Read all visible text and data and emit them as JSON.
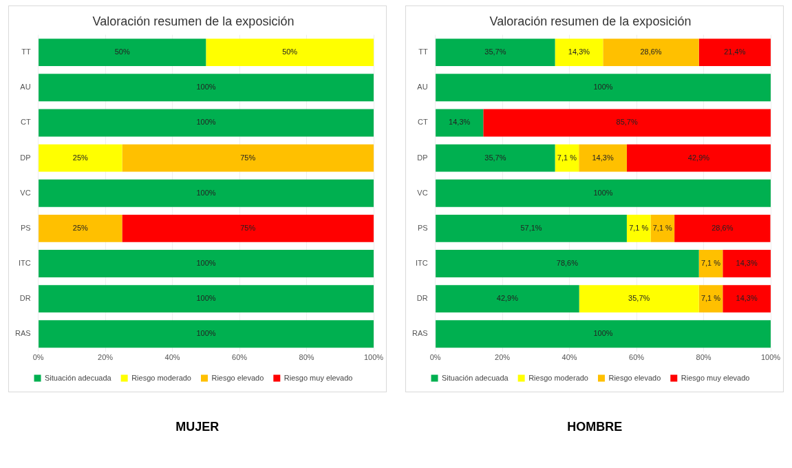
{
  "chart_data": [
    {
      "type": "bar",
      "orientation": "horizontal",
      "stacked": true,
      "title": "Valoración resumen de la exposición",
      "categories": [
        "TT",
        "AU",
        "CT",
        "DP",
        "VC",
        "PS",
        "ITC",
        "DR",
        "RAS"
      ],
      "series": [
        {
          "name": "Situación adecuada",
          "color": "#00b050",
          "values": [
            50,
            100,
            100,
            null,
            100,
            null,
            100,
            100,
            100
          ],
          "value_labels": [
            "50%",
            "100%",
            "100%",
            null,
            "100%",
            null,
            "100%",
            "100%",
            "100%"
          ]
        },
        {
          "name": "Riesgo moderado",
          "color": "#ffff00",
          "values": [
            50,
            null,
            null,
            25,
            null,
            null,
            null,
            null,
            null
          ],
          "value_labels": [
            "50%",
            null,
            null,
            "25%",
            null,
            null,
            null,
            null,
            null
          ]
        },
        {
          "name": "Riesgo elevado",
          "color": "#ffc000",
          "values": [
            null,
            null,
            null,
            75,
            null,
            25,
            null,
            null,
            null
          ],
          "value_labels": [
            null,
            null,
            null,
            "75%",
            null,
            "25%",
            null,
            null,
            null
          ]
        },
        {
          "name": "Riesgo muy elevado",
          "color": "#ff0000",
          "values": [
            null,
            null,
            null,
            null,
            null,
            75,
            null,
            null,
            null
          ],
          "value_labels": [
            null,
            null,
            null,
            null,
            null,
            "75%",
            null,
            null,
            null
          ]
        }
      ],
      "xlim": [
        0,
        100
      ],
      "xticks": [
        {
          "value": 0,
          "label": "0%"
        },
        {
          "value": 20,
          "label": "20%"
        },
        {
          "value": 40,
          "label": "40%"
        },
        {
          "value": 60,
          "label": "60%"
        },
        {
          "value": 80,
          "label": "80%"
        },
        {
          "value": 100,
          "label": "100%"
        }
      ],
      "grid": "x",
      "legend": "bottom",
      "annotations": [
        "MUJER"
      ]
    },
    {
      "type": "bar",
      "orientation": "horizontal",
      "stacked": true,
      "title": "Valoración resumen de la exposición",
      "categories": [
        "TT",
        "AU",
        "CT",
        "DP",
        "VC",
        "PS",
        "ITC",
        "DR",
        "RAS"
      ],
      "series": [
        {
          "name": "Situación adecuada",
          "color": "#00b050",
          "values": [
            35.7,
            100,
            14.3,
            35.7,
            100,
            57.1,
            78.6,
            42.9,
            100
          ],
          "value_labels": [
            "35,7%",
            "100%",
            "14,3%",
            "35,7%",
            "100%",
            "57,1%",
            "78,6%",
            "42,9%",
            "100%"
          ]
        },
        {
          "name": "Riesgo moderado",
          "color": "#ffff00",
          "values": [
            14.3,
            null,
            null,
            7.1,
            null,
            7.1,
            null,
            35.7,
            null
          ],
          "value_labels": [
            "14,3%",
            null,
            null,
            "7,1 %",
            null,
            "7,1 %",
            null,
            "35,7%",
            null
          ]
        },
        {
          "name": "Riesgo elevado",
          "color": "#ffc000",
          "values": [
            28.6,
            null,
            null,
            14.3,
            null,
            7.1,
            7.1,
            7.1,
            null
          ],
          "value_labels": [
            "28,6%",
            null,
            null,
            "14,3%",
            null,
            "7,1 %",
            "7,1 %",
            "7,1 %",
            null
          ]
        },
        {
          "name": "Riesgo muy elevado",
          "color": "#ff0000",
          "values": [
            21.4,
            null,
            85.7,
            42.9,
            null,
            28.6,
            14.3,
            14.3,
            null
          ],
          "value_labels": [
            "21,4%",
            null,
            "85,7%",
            "42,9%",
            null,
            "28,6%",
            "14,3%",
            "14,3%",
            null
          ]
        }
      ],
      "xlim": [
        0,
        100
      ],
      "xticks": [
        {
          "value": 0,
          "label": "0%"
        },
        {
          "value": 20,
          "label": "20%"
        },
        {
          "value": 40,
          "label": "40%"
        },
        {
          "value": 60,
          "label": "60%"
        },
        {
          "value": 80,
          "label": "80%"
        },
        {
          "value": 100,
          "label": "100%"
        }
      ],
      "grid": "x",
      "legend": "bottom",
      "annotations": [
        "HOMBRE"
      ]
    }
  ]
}
